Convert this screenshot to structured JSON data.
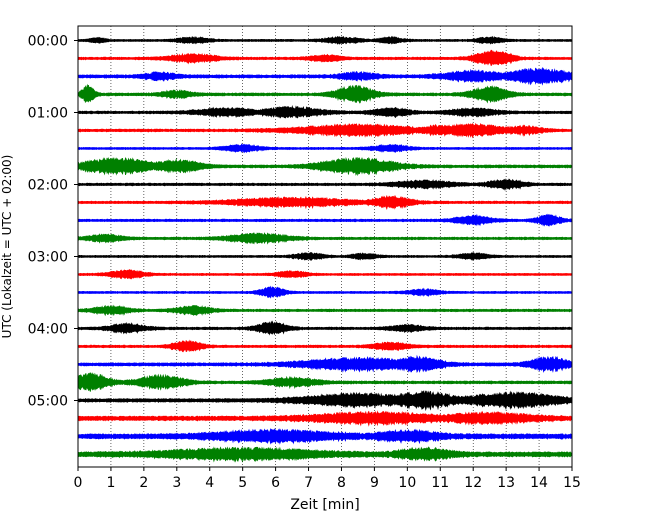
{
  "chart_data": {
    "type": "line",
    "title": "",
    "xlabel": "Zeit  [min]",
    "ylabel": "UTC (Lokalzeit = UTC + 02:00)",
    "xlim": [
      0,
      15
    ],
    "x_ticks": [
      0,
      1,
      2,
      3,
      4,
      5,
      6,
      7,
      8,
      9,
      10,
      11,
      12,
      13,
      14,
      15
    ],
    "x_tick_labels": [
      "0",
      "1",
      "2",
      "3",
      "4",
      "5",
      "6",
      "7",
      "8",
      "9",
      "10",
      "11",
      "12",
      "13",
      "14",
      "15"
    ],
    "x_grid": "vertical dotted at each minute",
    "y_tick_labels": [
      "00:00",
      "01:00",
      "02:00",
      "03:00",
      "04:00",
      "05:00"
    ],
    "y_tick_rows": [
      0,
      4,
      8,
      12,
      16,
      20
    ],
    "trace_colors": [
      "#000000",
      "#ff0000",
      "#0000ff",
      "#008000"
    ],
    "traces_per_hour": 4,
    "trace_interval_min": 15,
    "series": [
      {
        "start": "00:00",
        "color": "#000000",
        "base": 0.12,
        "bursts": [
          [
            0.6,
            0.25,
            0.25
          ],
          [
            3.5,
            0.5,
            0.3
          ],
          [
            8.0,
            0.6,
            0.3
          ],
          [
            9.5,
            0.4,
            0.3
          ],
          [
            12.5,
            0.4,
            0.3
          ]
        ]
      },
      {
        "start": "00:15",
        "color": "#ff0000",
        "base": 0.14,
        "bursts": [
          [
            3.5,
            0.8,
            0.4
          ],
          [
            7.5,
            0.5,
            0.3
          ],
          [
            12.6,
            0.6,
            0.75
          ],
          [
            13.0,
            0.3,
            0.5
          ]
        ]
      },
      {
        "start": "00:30",
        "color": "#0000ff",
        "base": 0.18,
        "bursts": [
          [
            2.5,
            0.5,
            0.35
          ],
          [
            8.5,
            0.6,
            0.35
          ],
          [
            12.0,
            1.0,
            0.5
          ],
          [
            14.0,
            1.0,
            0.75
          ]
        ]
      },
      {
        "start": "00:45",
        "color": "#008000",
        "base": 0.16,
        "bursts": [
          [
            0.3,
            0.2,
            0.9
          ],
          [
            3.0,
            0.5,
            0.35
          ],
          [
            8.4,
            0.6,
            0.85
          ],
          [
            12.5,
            0.6,
            0.75
          ]
        ]
      },
      {
        "start": "01:00",
        "color": "#000000",
        "base": 0.15,
        "bursts": [
          [
            4.5,
            1.0,
            0.4
          ],
          [
            6.5,
            1.0,
            0.5
          ],
          [
            9.5,
            0.6,
            0.4
          ],
          [
            12.0,
            0.8,
            0.35
          ]
        ]
      },
      {
        "start": "01:15",
        "color": "#ff0000",
        "base": 0.15,
        "bursts": [
          [
            8.5,
            2.0,
            0.55
          ],
          [
            11.0,
            0.6,
            0.5
          ],
          [
            12.0,
            1.0,
            0.6
          ],
          [
            13.5,
            0.6,
            0.4
          ]
        ]
      },
      {
        "start": "01:30",
        "color": "#0000ff",
        "base": 0.12,
        "bursts": [
          [
            5.0,
            0.6,
            0.35
          ],
          [
            9.5,
            0.6,
            0.35
          ]
        ]
      },
      {
        "start": "01:45",
        "color": "#008000",
        "base": 0.16,
        "bursts": [
          [
            1.2,
            1.2,
            0.8
          ],
          [
            3.0,
            0.8,
            0.6
          ],
          [
            8.5,
            1.2,
            0.8
          ]
        ]
      },
      {
        "start": "02:00",
        "color": "#000000",
        "base": 0.14,
        "bursts": [
          [
            10.5,
            1.0,
            0.35
          ],
          [
            13.0,
            0.6,
            0.45
          ]
        ]
      },
      {
        "start": "02:15",
        "color": "#ff0000",
        "base": 0.14,
        "bursts": [
          [
            6.5,
            2.0,
            0.45
          ],
          [
            9.5,
            0.7,
            0.55
          ]
        ]
      },
      {
        "start": "02:30",
        "color": "#0000ff",
        "base": 0.14,
        "bursts": [
          [
            12.0,
            0.6,
            0.45
          ],
          [
            14.3,
            0.4,
            0.5
          ]
        ]
      },
      {
        "start": "02:45",
        "color": "#008000",
        "base": 0.14,
        "bursts": [
          [
            0.8,
            0.6,
            0.35
          ],
          [
            5.5,
            1.0,
            0.45
          ]
        ]
      },
      {
        "start": "03:00",
        "color": "#000000",
        "base": 0.12,
        "bursts": [
          [
            7.0,
            0.5,
            0.3
          ],
          [
            8.7,
            0.4,
            0.3
          ],
          [
            12.0,
            0.5,
            0.3
          ]
        ]
      },
      {
        "start": "03:15",
        "color": "#ff0000",
        "base": 0.12,
        "bursts": [
          [
            1.5,
            0.6,
            0.4
          ],
          [
            6.5,
            0.5,
            0.3
          ]
        ]
      },
      {
        "start": "03:30",
        "color": "#0000ff",
        "base": 0.12,
        "bursts": [
          [
            5.9,
            0.4,
            0.5
          ],
          [
            10.5,
            0.5,
            0.3
          ]
        ]
      },
      {
        "start": "03:45",
        "color": "#008000",
        "base": 0.14,
        "bursts": [
          [
            1.0,
            0.6,
            0.4
          ],
          [
            3.5,
            0.6,
            0.4
          ]
        ]
      },
      {
        "start": "04:00",
        "color": "#000000",
        "base": 0.14,
        "bursts": [
          [
            1.5,
            0.6,
            0.45
          ],
          [
            5.9,
            0.5,
            0.6
          ],
          [
            10.0,
            0.6,
            0.3
          ]
        ]
      },
      {
        "start": "04:15",
        "color": "#ff0000",
        "base": 0.14,
        "bursts": [
          [
            3.3,
            0.5,
            0.5
          ],
          [
            9.5,
            0.6,
            0.35
          ]
        ]
      },
      {
        "start": "04:30",
        "color": "#0000ff",
        "base": 0.18,
        "bursts": [
          [
            8.5,
            1.8,
            0.6
          ],
          [
            10.3,
            0.8,
            0.7
          ],
          [
            14.3,
            0.6,
            0.7
          ]
        ]
      },
      {
        "start": "04:45",
        "color": "#008000",
        "base": 0.16,
        "bursts": [
          [
            0.4,
            0.6,
            0.85
          ],
          [
            2.5,
            0.8,
            0.65
          ],
          [
            6.5,
            0.8,
            0.45
          ]
        ]
      },
      {
        "start": "05:00",
        "color": "#000000",
        "base": 0.2,
        "bursts": [
          [
            8.5,
            1.8,
            0.6
          ],
          [
            10.5,
            1.0,
            0.8
          ],
          [
            13.2,
            1.5,
            0.7
          ]
        ]
      },
      {
        "start": "05:15",
        "color": "#ff0000",
        "base": 0.25,
        "bursts": [
          [
            9.0,
            2.0,
            0.5
          ],
          [
            12.5,
            1.5,
            0.45
          ]
        ]
      },
      {
        "start": "05:30",
        "color": "#0000ff",
        "base": 0.28,
        "bursts": [
          [
            6.0,
            2.0,
            0.5
          ],
          [
            10.0,
            1.0,
            0.45
          ]
        ]
      },
      {
        "start": "05:45",
        "color": "#008000",
        "base": 0.28,
        "bursts": [
          [
            5.0,
            2.5,
            0.5
          ],
          [
            10.5,
            0.8,
            0.55
          ]
        ]
      }
    ]
  }
}
